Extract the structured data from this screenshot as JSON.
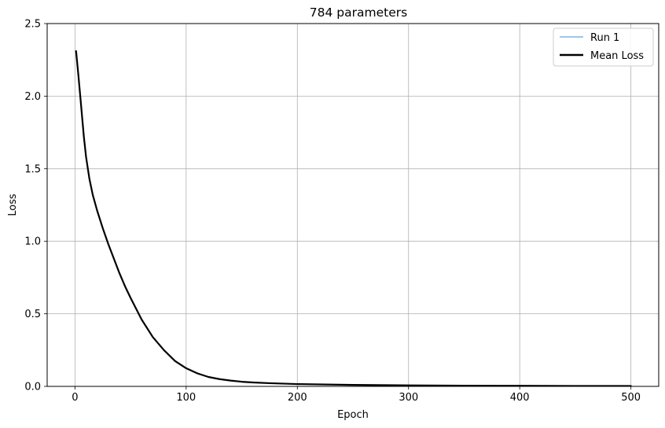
{
  "chart_data": {
    "type": "line",
    "title": "784 parameters",
    "xlabel": "Epoch",
    "ylabel": "Loss",
    "xlim": [
      -25,
      525
    ],
    "ylim": [
      0,
      2.5
    ],
    "xticks": [
      0,
      100,
      200,
      300,
      400,
      500
    ],
    "yticks": [
      0.0,
      0.5,
      1.0,
      1.5,
      2.0,
      2.5
    ],
    "xtick_labels": [
      "0",
      "100",
      "200",
      "300",
      "400",
      "500"
    ],
    "ytick_labels": [
      "0.0",
      "0.5",
      "1.0",
      "1.5",
      "2.0",
      "2.5"
    ],
    "grid": true,
    "legend_position": "top-right",
    "series": [
      {
        "name": "Run 1",
        "color": "#7fb2e5",
        "x": [
          1,
          3,
          5,
          8,
          10,
          13,
          16,
          20,
          25,
          30,
          35,
          40,
          45,
          50,
          60,
          70,
          80,
          90,
          100,
          110,
          120,
          130,
          140,
          150,
          160,
          175,
          200,
          250,
          300,
          350,
          400,
          450,
          500
        ],
        "y": [
          2.31,
          2.15,
          1.98,
          1.72,
          1.58,
          1.43,
          1.32,
          1.21,
          1.09,
          0.98,
          0.88,
          0.78,
          0.69,
          0.61,
          0.46,
          0.34,
          0.25,
          0.175,
          0.125,
          0.09,
          0.065,
          0.05,
          0.04,
          0.032,
          0.027,
          0.022,
          0.016,
          0.01,
          0.007,
          0.005,
          0.004,
          0.003,
          0.003
        ]
      },
      {
        "name": "Mean Loss",
        "color": "#000000",
        "x": [
          1,
          3,
          5,
          8,
          10,
          13,
          16,
          20,
          25,
          30,
          35,
          40,
          45,
          50,
          60,
          70,
          80,
          90,
          100,
          110,
          120,
          130,
          140,
          150,
          160,
          175,
          200,
          250,
          300,
          350,
          400,
          450,
          500
        ],
        "y": [
          2.31,
          2.15,
          1.98,
          1.72,
          1.58,
          1.43,
          1.32,
          1.21,
          1.09,
          0.98,
          0.88,
          0.78,
          0.69,
          0.61,
          0.46,
          0.34,
          0.25,
          0.175,
          0.125,
          0.09,
          0.065,
          0.05,
          0.04,
          0.032,
          0.027,
          0.022,
          0.016,
          0.01,
          0.007,
          0.005,
          0.004,
          0.003,
          0.003
        ]
      }
    ]
  }
}
